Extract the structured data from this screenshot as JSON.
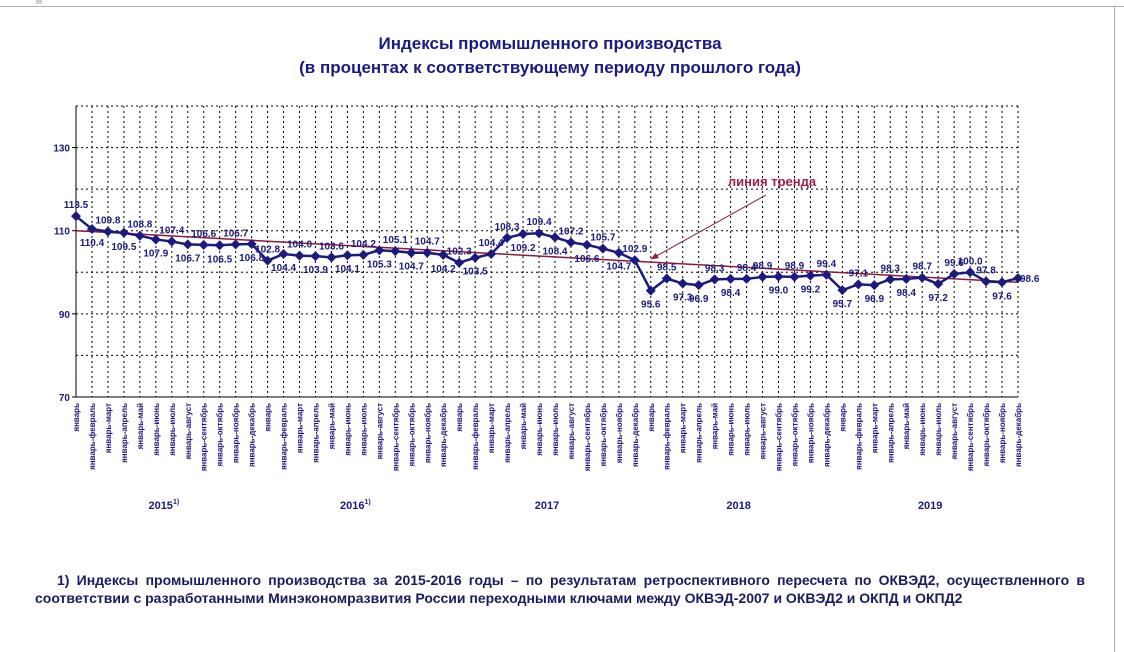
{
  "chart_data": {
    "type": "line",
    "title": "Индексы промышленного производства",
    "subtitle": "(в процентах к соответствующему периоду прошлого года)",
    "ylim": [
      70,
      140
    ],
    "yticks": [
      "70",
      "90",
      "110",
      "130"
    ],
    "grid": true,
    "categories": [
      "январь",
      "январь-февраль",
      "январь-март",
      "январь-апрель",
      "январь-май",
      "январь-июнь",
      "январь-июль",
      "январь-август",
      "январь-сентябрь",
      "январь-октябрь",
      "январь-ноябрь",
      "январь-декабрь",
      "январь",
      "январь-февраль",
      "январь-март",
      "январь-апрель",
      "январь-май",
      "январь-июнь",
      "январь-июль",
      "январь-август",
      "январь-сентябрь",
      "январь-октябрь",
      "январь-ноябрь",
      "январь-декабрь",
      "январь",
      "январь-февраль",
      "январь-март",
      "январь-апрель",
      "январь-май",
      "январь-июнь",
      "январь-июль",
      "январь-август",
      "январь-сентябрь",
      "январь-октябрь",
      "январь-ноябрь",
      "январь-декабрь",
      "январь",
      "январь-февраль",
      "январь-март",
      "январь-апрель",
      "январь-май",
      "январь-июнь",
      "январь-июль",
      "январь-август",
      "январь-сентябрь",
      "январь-октябрь",
      "январь-ноябрь",
      "январь-декабрь",
      "январь",
      "январь-февраль",
      "январь-март",
      "январь-апрель",
      "январь-май",
      "январь-июнь",
      "январь-июль",
      "январь-август",
      "январь-сентябрь",
      "январь-октябрь",
      "январь-ноябрь",
      "январь-декабрь"
    ],
    "values": [
      113.5,
      110.4,
      109.8,
      109.5,
      108.8,
      107.9,
      107.4,
      106.7,
      106.6,
      106.5,
      106.7,
      106.8,
      102.8,
      104.4,
      104.0,
      103.9,
      103.6,
      104.1,
      104.2,
      105.3,
      105.1,
      104.7,
      104.7,
      104.2,
      102.3,
      103.5,
      104.4,
      108.3,
      109.2,
      109.4,
      108.4,
      107.2,
      106.6,
      105.7,
      104.7,
      102.9,
      95.6,
      98.5,
      97.3,
      96.9,
      98.3,
      98.4,
      98.4,
      98.9,
      99.0,
      98.9,
      99.2,
      99.4,
      95.7,
      97.1,
      96.9,
      98.3,
      98.4,
      98.7,
      97.2,
      99.6,
      100.0,
      97.8,
      97.6,
      98.6
    ],
    "value_labels": [
      "113.5",
      "110.4",
      "109.8",
      "109.5",
      "108.8",
      "107.9",
      "107.4",
      "106.7",
      "106.6",
      "106.5",
      "106.7",
      "106.8",
      "102.8",
      "104.4",
      "104.0",
      "103.9",
      "103.6",
      "104.1",
      "104.2",
      "105.3",
      "105.1",
      "104.7",
      "104.7",
      "104.2",
      "102.3",
      "103.5",
      "104.4",
      "108.3",
      "109.2",
      "109.4",
      "108.4",
      "107.2",
      "106.6",
      "105.7",
      "104.7",
      "102.9",
      "95.6",
      "98.5",
      "97.3",
      "96.9",
      "98.3",
      "98.4",
      "98.4",
      "98.9",
      "99.0",
      "98.9",
      "99.2",
      "99.4",
      "95.7",
      "97.1",
      "96.9",
      "98.3",
      "98.4",
      "98.7",
      "97.2",
      "99.6",
      "100.0",
      "97.8",
      "97.6",
      "98.6"
    ],
    "label_positions": [
      "above",
      "below",
      "above",
      "below",
      "above",
      "below",
      "above",
      "below",
      "above",
      "below",
      "above",
      "below",
      "above",
      "below",
      "above",
      "below",
      "above",
      "below",
      "above",
      "below",
      "above",
      "below",
      "above",
      "below",
      "above",
      "below",
      "above",
      "above",
      "below",
      "above",
      "below",
      "above",
      "below",
      "above",
      "below",
      "above",
      "below",
      "above",
      "below",
      "below",
      "above",
      "below",
      "above",
      "above",
      "below",
      "above",
      "below",
      "above",
      "below",
      "above",
      "below",
      "above",
      "below",
      "above",
      "below",
      "above",
      "above",
      "above",
      "below",
      "right"
    ],
    "years": [
      {
        "label": "2015",
        "note": "1)"
      },
      {
        "label": "2016",
        "note": "1)"
      },
      {
        "label": "2017",
        "note": ""
      },
      {
        "label": "2018",
        "note": ""
      },
      {
        "label": "2019",
        "note": ""
      }
    ],
    "trend": {
      "label": "линия тренда",
      "start": 110.0,
      "end": 97.6
    },
    "colors": {
      "series": "#1a1a80",
      "trend": "#8b1a3c",
      "grid": "#000000",
      "text": "#1a1a80",
      "trend_label": "#a0204a"
    }
  },
  "footnote": "1) Индексы промышленного производства за 2015-2016 годы – по результатам ретроспективного пересчета по ОКВЭД2, осуществленного в соответствии с разработанными Минэкономразвития России переходными ключами между ОКВЭД-2007 и ОКВЭД2 и ОКПД и ОКПД2"
}
